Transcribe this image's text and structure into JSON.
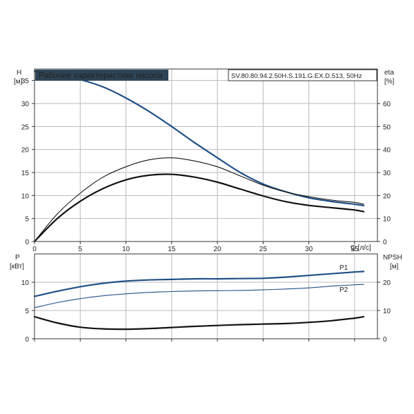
{
  "colors": {
    "blue": "#1f4f86",
    "black": "#111111",
    "title_bg": "#2e4456",
    "title_fg": "#ffffff",
    "grid": "#b9b9b9"
  },
  "chart_data": [
    {
      "type": "line",
      "title": "Рабочие характеристики насоса",
      "subtitle": "SV.80.80.94.2.50H.S.191.G.EX.D.513, 50Hz",
      "xlabel": "Q [л/с]",
      "ylabel": "H",
      "ylabel_unit": "[м]",
      "y2label": "eta",
      "y2label_unit": "[%]",
      "xlim": [
        0,
        37.5
      ],
      "ylim": [
        0,
        37.5
      ],
      "y2lim": [
        0,
        75
      ],
      "x_ticks": [
        0,
        5,
        10,
        15,
        20,
        25,
        30,
        35
      ],
      "y_ticks": [
        0,
        5,
        10,
        15,
        20,
        25,
        30,
        35
      ],
      "y2_ticks": [
        0,
        10,
        20,
        30,
        40,
        50,
        60
      ],
      "grid": true,
      "series": [
        {
          "color": "#1f4f86",
          "axis": "left",
          "width": 2.2,
          "points": [
            [
              0,
              37
            ],
            [
              2.5,
              36.3
            ],
            [
              5,
              35.2
            ],
            [
              7.5,
              33.6
            ],
            [
              10,
              31.2
            ],
            [
              12.5,
              28.3
            ],
            [
              15,
              25
            ],
            [
              17.5,
              21.5
            ],
            [
              20,
              18.2
            ],
            [
              22.5,
              15
            ],
            [
              25,
              12.5
            ],
            [
              27.5,
              10.8
            ],
            [
              30,
              9.5
            ],
            [
              32.5,
              8.7
            ],
            [
              35,
              8.1
            ],
            [
              36,
              7.8
            ]
          ]
        },
        {
          "color": "#111111",
          "axis": "right",
          "width": 1.1,
          "points": [
            [
              0,
              0
            ],
            [
              2.5,
              12
            ],
            [
              5,
              21
            ],
            [
              7.5,
              28
            ],
            [
              10,
              32.5
            ],
            [
              12.5,
              35.5
            ],
            [
              15,
              36.4
            ],
            [
              17.5,
              35
            ],
            [
              20,
              32.5
            ],
            [
              22.5,
              28.5
            ],
            [
              25,
              24.5
            ],
            [
              27.5,
              21.5
            ],
            [
              30,
              19.5
            ],
            [
              32.5,
              18
            ],
            [
              35,
              17
            ],
            [
              36,
              16.2
            ]
          ]
        },
        {
          "color": "#111111",
          "axis": "right",
          "width": 2.2,
          "points": [
            [
              0,
              0
            ],
            [
              2.5,
              10
            ],
            [
              5,
              17.5
            ],
            [
              7.5,
              23
            ],
            [
              10,
              26.8
            ],
            [
              12.5,
              28.8
            ],
            [
              15,
              29.2
            ],
            [
              17.5,
              28
            ],
            [
              20,
              25.8
            ],
            [
              22.5,
              22.8
            ],
            [
              25,
              19.8
            ],
            [
              27.5,
              17.3
            ],
            [
              30,
              15.7
            ],
            [
              32.5,
              14.7
            ],
            [
              35,
              13.7
            ],
            [
              36,
              13
            ]
          ]
        }
      ]
    },
    {
      "type": "line",
      "ylabel": "P",
      "ylabel_unit": "[кВт]",
      "y2label": "NPSH",
      "y2label_unit": "[м]",
      "xlim": [
        0,
        37.5
      ],
      "ylim": [
        0,
        15
      ],
      "y2lim": [
        0,
        30
      ],
      "x_ticks": [
        0,
        5,
        10,
        15,
        20,
        25,
        30,
        35
      ],
      "y_ticks": [
        0,
        5,
        10
      ],
      "y2_ticks": [
        0,
        10,
        20
      ],
      "grid": true,
      "series": [
        {
          "name": "P1",
          "color": "#1f4f86",
          "axis": "left",
          "width": 2.2,
          "points": [
            [
              0,
              7.5
            ],
            [
              2.5,
              8.4
            ],
            [
              5,
              9.2
            ],
            [
              7.5,
              9.8
            ],
            [
              10,
              10.2
            ],
            [
              12.5,
              10.4
            ],
            [
              15,
              10.5
            ],
            [
              17.5,
              10.6
            ],
            [
              20,
              10.6
            ],
            [
              22.5,
              10.65
            ],
            [
              25,
              10.7
            ],
            [
              27.5,
              10.9
            ],
            [
              30,
              11.2
            ],
            [
              32.5,
              11.5
            ],
            [
              35,
              11.8
            ],
            [
              36,
              11.9
            ]
          ]
        },
        {
          "name": "P2",
          "color": "#1f4f86",
          "axis": "left",
          "width": 1.1,
          "points": [
            [
              0,
              5.5
            ],
            [
              2.5,
              6.4
            ],
            [
              5,
              7.1
            ],
            [
              7.5,
              7.6
            ],
            [
              10,
              7.95
            ],
            [
              12.5,
              8.2
            ],
            [
              15,
              8.35
            ],
            [
              17.5,
              8.45
            ],
            [
              20,
              8.5
            ],
            [
              22.5,
              8.55
            ],
            [
              25,
              8.65
            ],
            [
              27.5,
              8.8
            ],
            [
              30,
              9.0
            ],
            [
              32.5,
              9.3
            ],
            [
              35,
              9.55
            ],
            [
              36,
              9.6
            ]
          ]
        },
        {
          "color": "#111111",
          "axis": "right",
          "width": 2.2,
          "points": [
            [
              0,
              7.8
            ],
            [
              2.5,
              5.6
            ],
            [
              5,
              4.1
            ],
            [
              7.5,
              3.5
            ],
            [
              10,
              3.4
            ],
            [
              12.5,
              3.6
            ],
            [
              15,
              4.0
            ],
            [
              17.5,
              4.4
            ],
            [
              20,
              4.7
            ],
            [
              22.5,
              5.0
            ],
            [
              25,
              5.2
            ],
            [
              27.5,
              5.4
            ],
            [
              30,
              5.8
            ],
            [
              32.5,
              6.4
            ],
            [
              35,
              7.3
            ],
            [
              36,
              7.8
            ]
          ]
        }
      ]
    }
  ]
}
